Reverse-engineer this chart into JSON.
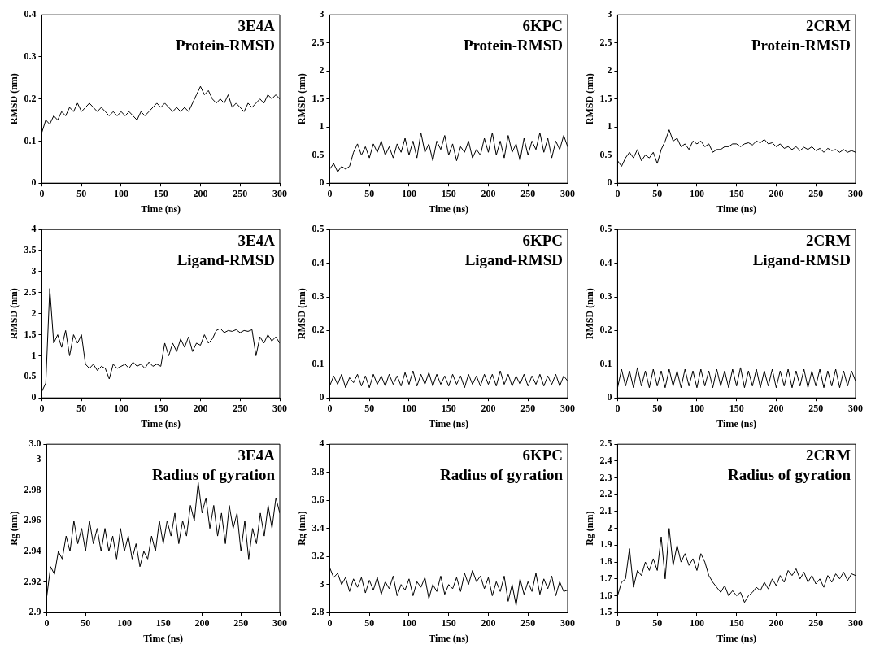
{
  "chart_data": [
    {
      "type": "line",
      "title": "3E4A",
      "subtitle": "Protein-RMSD",
      "xlabel": "Time (ns)",
      "ylabel": "RMSD (nm)",
      "color": "#000000",
      "xlim": [
        0,
        300
      ],
      "xticks": [
        0,
        50,
        100,
        150,
        200,
        250,
        300
      ],
      "ylim": [
        0,
        0.4
      ],
      "yticks": [
        0,
        0.1,
        0.2,
        0.3,
        0.4
      ],
      "x": [
        0,
        5,
        10,
        15,
        20,
        25,
        30,
        35,
        40,
        45,
        50,
        55,
        60,
        65,
        70,
        75,
        80,
        85,
        90,
        95,
        100,
        105,
        110,
        115,
        120,
        125,
        130,
        135,
        140,
        145,
        150,
        155,
        160,
        165,
        170,
        175,
        180,
        185,
        190,
        195,
        200,
        205,
        210,
        215,
        220,
        225,
        230,
        235,
        240,
        245,
        250,
        255,
        260,
        265,
        270,
        275,
        280,
        285,
        290,
        295,
        300
      ],
      "values": [
        0.12,
        0.15,
        0.14,
        0.16,
        0.15,
        0.17,
        0.16,
        0.18,
        0.17,
        0.19,
        0.17,
        0.18,
        0.19,
        0.18,
        0.17,
        0.18,
        0.17,
        0.16,
        0.17,
        0.16,
        0.17,
        0.16,
        0.17,
        0.16,
        0.15,
        0.17,
        0.16,
        0.17,
        0.18,
        0.19,
        0.18,
        0.19,
        0.18,
        0.17,
        0.18,
        0.17,
        0.18,
        0.17,
        0.19,
        0.21,
        0.23,
        0.21,
        0.22,
        0.2,
        0.19,
        0.2,
        0.19,
        0.21,
        0.18,
        0.19,
        0.18,
        0.17,
        0.19,
        0.18,
        0.19,
        0.2,
        0.19,
        0.21,
        0.2,
        0.21,
        0.2
      ]
    },
    {
      "type": "line",
      "title": "6KPC",
      "subtitle": "Protein-RMSD",
      "xlabel": "Time (ns)",
      "ylabel": "RMSD (nm)",
      "color": "#000000",
      "xlim": [
        0,
        300
      ],
      "xticks": [
        0,
        50,
        100,
        150,
        200,
        250,
        300
      ],
      "ylim": [
        0,
        3
      ],
      "yticks": [
        0,
        0.5,
        1,
        1.5,
        2,
        2.5,
        3
      ],
      "x": [
        0,
        5,
        10,
        15,
        20,
        25,
        30,
        35,
        40,
        45,
        50,
        55,
        60,
        65,
        70,
        75,
        80,
        85,
        90,
        95,
        100,
        105,
        110,
        115,
        120,
        125,
        130,
        135,
        140,
        145,
        150,
        155,
        160,
        165,
        170,
        175,
        180,
        185,
        190,
        195,
        200,
        205,
        210,
        215,
        220,
        225,
        230,
        235,
        240,
        245,
        250,
        255,
        260,
        265,
        270,
        275,
        280,
        285,
        290,
        295,
        300
      ],
      "values": [
        0.25,
        0.35,
        0.2,
        0.3,
        0.25,
        0.3,
        0.55,
        0.7,
        0.5,
        0.65,
        0.45,
        0.7,
        0.55,
        0.75,
        0.5,
        0.65,
        0.45,
        0.7,
        0.55,
        0.8,
        0.5,
        0.75,
        0.45,
        0.9,
        0.55,
        0.7,
        0.4,
        0.75,
        0.6,
        0.85,
        0.5,
        0.7,
        0.4,
        0.65,
        0.55,
        0.75,
        0.45,
        0.6,
        0.5,
        0.8,
        0.55,
        0.9,
        0.5,
        0.75,
        0.45,
        0.85,
        0.55,
        0.7,
        0.4,
        0.8,
        0.5,
        0.75,
        0.6,
        0.9,
        0.55,
        0.8,
        0.45,
        0.75,
        0.6,
        0.85,
        0.65
      ]
    },
    {
      "type": "line",
      "title": "2CRM",
      "subtitle": "Protein-RMSD",
      "xlabel": "Time (ns)",
      "ylabel": "RMSD (nm)",
      "color": "#000000",
      "xlim": [
        0,
        300
      ],
      "xticks": [
        0,
        50,
        100,
        150,
        200,
        250,
        300
      ],
      "ylim": [
        0,
        3
      ],
      "yticks": [
        0,
        0.5,
        1,
        1.5,
        2,
        2.5,
        3
      ],
      "x": [
        0,
        5,
        10,
        15,
        20,
        25,
        30,
        35,
        40,
        45,
        50,
        55,
        60,
        65,
        70,
        75,
        80,
        85,
        90,
        95,
        100,
        105,
        110,
        115,
        120,
        125,
        130,
        135,
        140,
        145,
        150,
        155,
        160,
        165,
        170,
        175,
        180,
        185,
        190,
        195,
        200,
        205,
        210,
        215,
        220,
        225,
        230,
        235,
        240,
        245,
        250,
        255,
        260,
        265,
        270,
        275,
        280,
        285,
        290,
        295,
        300
      ],
      "values": [
        0.4,
        0.3,
        0.45,
        0.55,
        0.45,
        0.6,
        0.4,
        0.5,
        0.45,
        0.55,
        0.35,
        0.6,
        0.75,
        0.95,
        0.75,
        0.8,
        0.65,
        0.7,
        0.6,
        0.75,
        0.7,
        0.75,
        0.65,
        0.7,
        0.55,
        0.6,
        0.6,
        0.65,
        0.65,
        0.7,
        0.7,
        0.65,
        0.7,
        0.72,
        0.68,
        0.75,
        0.72,
        0.78,
        0.7,
        0.72,
        0.65,
        0.7,
        0.62,
        0.65,
        0.6,
        0.65,
        0.58,
        0.64,
        0.6,
        0.65,
        0.58,
        0.62,
        0.55,
        0.62,
        0.58,
        0.6,
        0.55,
        0.6,
        0.55,
        0.58,
        0.55
      ]
    },
    {
      "type": "line",
      "title": "3E4A",
      "subtitle": "Ligand-RMSD",
      "xlabel": "Time (ns)",
      "ylabel": "RMSD (nm)",
      "color": "#000000",
      "xlim": [
        0,
        300
      ],
      "xticks": [
        0,
        50,
        100,
        150,
        200,
        250,
        300
      ],
      "ylim": [
        0,
        4
      ],
      "yticks": [
        0,
        0.5,
        1,
        1.5,
        2,
        2.5,
        3,
        3.5,
        4
      ],
      "x": [
        0,
        5,
        10,
        15,
        20,
        25,
        30,
        35,
        40,
        45,
        50,
        55,
        60,
        65,
        70,
        75,
        80,
        85,
        90,
        95,
        100,
        105,
        110,
        115,
        120,
        125,
        130,
        135,
        140,
        145,
        150,
        155,
        160,
        165,
        170,
        175,
        180,
        185,
        190,
        195,
        200,
        205,
        210,
        215,
        220,
        225,
        230,
        235,
        240,
        245,
        250,
        255,
        260,
        265,
        270,
        275,
        280,
        285,
        290,
        295,
        300
      ],
      "values": [
        0.15,
        0.35,
        2.6,
        1.3,
        1.5,
        1.2,
        1.6,
        1.0,
        1.5,
        1.3,
        1.5,
        0.8,
        0.7,
        0.8,
        0.65,
        0.75,
        0.7,
        0.45,
        0.8,
        0.7,
        0.75,
        0.8,
        0.7,
        0.85,
        0.75,
        0.8,
        0.7,
        0.85,
        0.75,
        0.8,
        0.75,
        1.3,
        1.0,
        1.3,
        1.1,
        1.4,
        1.2,
        1.45,
        1.1,
        1.3,
        1.25,
        1.5,
        1.3,
        1.4,
        1.6,
        1.65,
        1.55,
        1.6,
        1.58,
        1.62,
        1.55,
        1.6,
        1.58,
        1.62,
        1.0,
        1.45,
        1.3,
        1.5,
        1.35,
        1.45,
        1.3
      ]
    },
    {
      "type": "line",
      "title": "6KPC",
      "subtitle": "Ligand-RMSD",
      "xlabel": "Time (ns)",
      "ylabel": "RMSD (nm)",
      "color": "#000000",
      "xlim": [
        0,
        300
      ],
      "xticks": [
        0,
        50,
        100,
        150,
        200,
        250,
        300
      ],
      "ylim": [
        0,
        0.5
      ],
      "yticks": [
        0,
        0.1,
        0.2,
        0.3,
        0.4,
        0.5
      ],
      "x": [
        0,
        5,
        10,
        15,
        20,
        25,
        30,
        35,
        40,
        45,
        50,
        55,
        60,
        65,
        70,
        75,
        80,
        85,
        90,
        95,
        100,
        105,
        110,
        115,
        120,
        125,
        130,
        135,
        140,
        145,
        150,
        155,
        160,
        165,
        170,
        175,
        180,
        185,
        190,
        195,
        200,
        205,
        210,
        215,
        220,
        225,
        230,
        235,
        240,
        245,
        250,
        255,
        260,
        265,
        270,
        275,
        280,
        285,
        290,
        295,
        300
      ],
      "values": [
        0.035,
        0.065,
        0.04,
        0.07,
        0.03,
        0.06,
        0.045,
        0.07,
        0.035,
        0.065,
        0.03,
        0.07,
        0.04,
        0.065,
        0.035,
        0.07,
        0.04,
        0.065,
        0.035,
        0.075,
        0.04,
        0.08,
        0.035,
        0.07,
        0.04,
        0.075,
        0.035,
        0.07,
        0.04,
        0.065,
        0.035,
        0.07,
        0.04,
        0.065,
        0.03,
        0.07,
        0.04,
        0.065,
        0.035,
        0.07,
        0.04,
        0.07,
        0.035,
        0.08,
        0.04,
        0.07,
        0.035,
        0.065,
        0.04,
        0.07,
        0.035,
        0.065,
        0.04,
        0.07,
        0.035,
        0.065,
        0.04,
        0.07,
        0.035,
        0.065,
        0.05
      ]
    },
    {
      "type": "line",
      "title": "2CRM",
      "subtitle": "Ligand-RMSD",
      "xlabel": "Time (ns)",
      "ylabel": "RMSD (nm)",
      "color": "#000000",
      "xlim": [
        0,
        300
      ],
      "xticks": [
        0,
        50,
        100,
        150,
        200,
        250,
        300
      ],
      "ylim": [
        0,
        0.5
      ],
      "yticks": [
        0,
        0.1,
        0.2,
        0.3,
        0.4,
        0.5
      ],
      "x": [
        0,
        5,
        10,
        15,
        20,
        25,
        30,
        35,
        40,
        45,
        50,
        55,
        60,
        65,
        70,
        75,
        80,
        85,
        90,
        95,
        100,
        105,
        110,
        115,
        120,
        125,
        130,
        135,
        140,
        145,
        150,
        155,
        160,
        165,
        170,
        175,
        180,
        185,
        190,
        195,
        200,
        205,
        210,
        215,
        220,
        225,
        230,
        235,
        240,
        245,
        250,
        255,
        260,
        265,
        270,
        275,
        280,
        285,
        290,
        295,
        300
      ],
      "values": [
        0.03,
        0.085,
        0.035,
        0.08,
        0.03,
        0.09,
        0.035,
        0.08,
        0.03,
        0.085,
        0.035,
        0.08,
        0.03,
        0.085,
        0.035,
        0.08,
        0.03,
        0.085,
        0.035,
        0.08,
        0.03,
        0.085,
        0.035,
        0.08,
        0.03,
        0.085,
        0.035,
        0.08,
        0.03,
        0.085,
        0.035,
        0.09,
        0.03,
        0.08,
        0.035,
        0.085,
        0.03,
        0.08,
        0.035,
        0.085,
        0.03,
        0.08,
        0.035,
        0.085,
        0.03,
        0.08,
        0.035,
        0.085,
        0.03,
        0.08,
        0.035,
        0.085,
        0.03,
        0.08,
        0.035,
        0.085,
        0.03,
        0.08,
        0.035,
        0.08,
        0.05
      ]
    },
    {
      "type": "line",
      "title": "3E4A",
      "subtitle": "Radius of gyration",
      "xlabel": "Time (ns)",
      "ylabel": "Rg (nm)",
      "color": "#000000",
      "xlim": [
        0,
        300
      ],
      "xticks": [
        0,
        50,
        100,
        150,
        200,
        250,
        300
      ],
      "ylim": [
        2.9,
        3.01
      ],
      "yticks": [
        2.9,
        2.92,
        2.94,
        2.96,
        2.98,
        3,
        {
          "value": 3.01,
          "label": "3.0"
        }
      ],
      "x": [
        0,
        5,
        10,
        15,
        20,
        25,
        30,
        35,
        40,
        45,
        50,
        55,
        60,
        65,
        70,
        75,
        80,
        85,
        90,
        95,
        100,
        105,
        110,
        115,
        120,
        125,
        130,
        135,
        140,
        145,
        150,
        155,
        160,
        165,
        170,
        175,
        180,
        185,
        190,
        195,
        200,
        205,
        210,
        215,
        220,
        225,
        230,
        235,
        240,
        245,
        250,
        255,
        260,
        265,
        270,
        275,
        280,
        285,
        290,
        295,
        300
      ],
      "values": [
        2.91,
        2.93,
        2.925,
        2.94,
        2.935,
        2.95,
        2.94,
        2.96,
        2.945,
        2.955,
        2.94,
        2.96,
        2.945,
        2.955,
        2.94,
        2.955,
        2.94,
        2.95,
        2.935,
        2.955,
        2.94,
        2.95,
        2.935,
        2.945,
        2.93,
        2.94,
        2.935,
        2.95,
        2.94,
        2.96,
        2.945,
        2.96,
        2.95,
        2.965,
        2.945,
        2.96,
        2.95,
        2.97,
        2.96,
        2.985,
        2.965,
        2.975,
        2.955,
        2.97,
        2.95,
        2.965,
        2.945,
        2.97,
        2.955,
        2.965,
        2.94,
        2.96,
        2.935,
        2.955,
        2.945,
        2.965,
        2.95,
        2.97,
        2.955,
        2.975,
        2.965
      ]
    },
    {
      "type": "line",
      "title": "6KPC",
      "subtitle": "Radius of gyration",
      "xlabel": "Time (ns)",
      "ylabel": "Rg (nm)",
      "color": "#000000",
      "xlim": [
        0,
        300
      ],
      "xticks": [
        0,
        50,
        100,
        150,
        200,
        250,
        300
      ],
      "ylim": [
        2.8,
        4
      ],
      "yticks": [
        2.8,
        3,
        3.2,
        3.4,
        3.6,
        3.8,
        4
      ],
      "x": [
        0,
        5,
        10,
        15,
        20,
        25,
        30,
        35,
        40,
        45,
        50,
        55,
        60,
        65,
        70,
        75,
        80,
        85,
        90,
        95,
        100,
        105,
        110,
        115,
        120,
        125,
        130,
        135,
        140,
        145,
        150,
        155,
        160,
        165,
        170,
        175,
        180,
        185,
        190,
        195,
        200,
        205,
        210,
        215,
        220,
        225,
        230,
        235,
        240,
        245,
        250,
        255,
        260,
        265,
        270,
        275,
        280,
        285,
        290,
        295,
        300
      ],
      "values": [
        3.12,
        3.05,
        3.08,
        3.0,
        3.05,
        2.95,
        3.04,
        2.98,
        3.05,
        2.94,
        3.03,
        2.96,
        3.05,
        2.93,
        3.02,
        2.97,
        3.06,
        2.92,
        3.0,
        2.96,
        3.04,
        2.92,
        3.02,
        2.98,
        3.05,
        2.9,
        3.0,
        2.95,
        3.06,
        2.93,
        3.0,
        2.97,
        3.05,
        2.95,
        3.08,
        3.0,
        3.1,
        3.02,
        3.06,
        2.97,
        3.05,
        2.92,
        3.02,
        2.95,
        3.06,
        2.88,
        3.0,
        2.85,
        3.04,
        2.93,
        3.02,
        2.95,
        3.08,
        2.93,
        3.04,
        2.97,
        3.06,
        2.92,
        3.02,
        2.95,
        2.96
      ]
    },
    {
      "type": "line",
      "title": "2CRM",
      "subtitle": "Radius of gyration",
      "xlabel": "Time (ns)",
      "ylabel": "Rg (nm)",
      "color": "#000000",
      "xlim": [
        0,
        300
      ],
      "xticks": [
        0,
        50,
        100,
        150,
        200,
        250,
        300
      ],
      "ylim": [
        1.5,
        2.5
      ],
      "yticks": [
        1.5,
        1.6,
        1.7,
        1.8,
        1.9,
        2,
        2.1,
        2.2,
        2.3,
        2.4,
        2.5
      ],
      "x": [
        0,
        5,
        10,
        15,
        20,
        25,
        30,
        35,
        40,
        45,
        50,
        55,
        60,
        65,
        70,
        75,
        80,
        85,
        90,
        95,
        100,
        105,
        110,
        115,
        120,
        125,
        130,
        135,
        140,
        145,
        150,
        155,
        160,
        165,
        170,
        175,
        180,
        185,
        190,
        195,
        200,
        205,
        210,
        215,
        220,
        225,
        230,
        235,
        240,
        245,
        250,
        255,
        260,
        265,
        270,
        275,
        280,
        285,
        290,
        295,
        300
      ],
      "values": [
        1.6,
        1.68,
        1.7,
        1.88,
        1.65,
        1.75,
        1.72,
        1.8,
        1.75,
        1.82,
        1.75,
        1.95,
        1.7,
        2.0,
        1.78,
        1.9,
        1.8,
        1.85,
        1.78,
        1.82,
        1.75,
        1.85,
        1.8,
        1.72,
        1.68,
        1.65,
        1.62,
        1.66,
        1.6,
        1.63,
        1.6,
        1.62,
        1.56,
        1.6,
        1.62,
        1.65,
        1.63,
        1.68,
        1.64,
        1.7,
        1.66,
        1.72,
        1.68,
        1.75,
        1.72,
        1.76,
        1.7,
        1.74,
        1.68,
        1.72,
        1.67,
        1.7,
        1.65,
        1.72,
        1.68,
        1.73,
        1.7,
        1.74,
        1.69,
        1.73,
        1.72
      ]
    }
  ]
}
